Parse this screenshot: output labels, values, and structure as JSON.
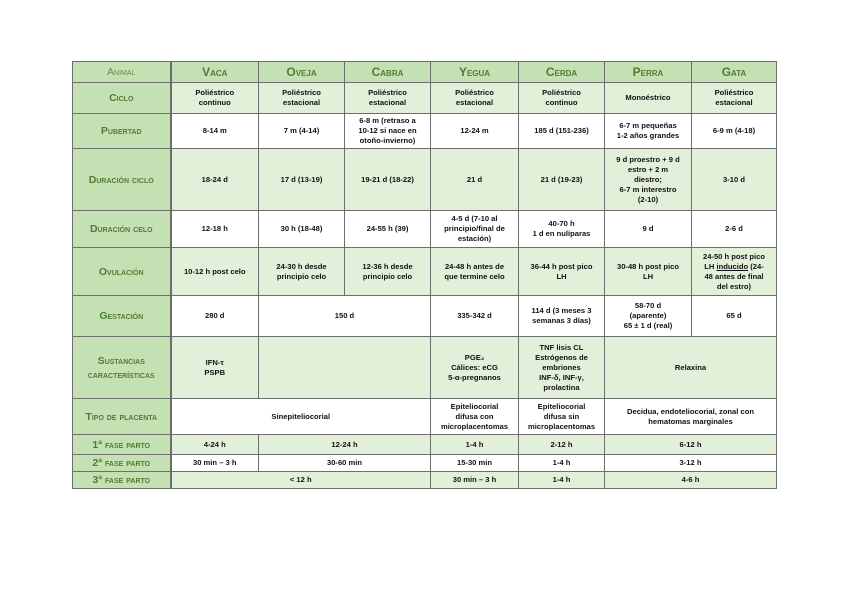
{
  "header": {
    "label": "Animal",
    "animals": [
      "Vaca",
      "Oveja",
      "Cabra",
      "Yegua",
      "Cerda",
      "Perra",
      "Gata"
    ]
  },
  "colors": {
    "header_bg": "#c5e0b3",
    "shaded_row": "#e2efd9",
    "label_text": "#4f7d35"
  },
  "rows": [
    {
      "label": "Ciclo",
      "shade": "g",
      "cells": [
        {
          "text": "Poliéstrico\ncontinuo"
        },
        {
          "text": "Poliéstrico\nestacional"
        },
        {
          "text": "Poliéstrico\nestacional"
        },
        {
          "text": "Poliéstrico\nestacional"
        },
        {
          "text": "Poliéstrico\ncontinuo"
        },
        {
          "text": "Monoéstrico"
        },
        {
          "text": "Poliéstrico\nestacional"
        }
      ]
    },
    {
      "label": "Pubertad",
      "shade": "w",
      "cells": [
        {
          "text": "8-14 m"
        },
        {
          "text": "7 m (4-14)"
        },
        {
          "text": "6-8 m (retraso a\n10-12 si nace en\notoño-invierno)"
        },
        {
          "text": "12-24 m"
        },
        {
          "text": "185 d (151-236)"
        },
        {
          "text": "6-7 m pequeñas\n1-2 años grandes"
        },
        {
          "text": "6-9 m (4-18)"
        }
      ]
    },
    {
      "label": "Duración ciclo",
      "shade": "g",
      "cells": [
        {
          "text": "18-24 d"
        },
        {
          "text": "17 d (13-19)"
        },
        {
          "text": "19-21 d (18-22)"
        },
        {
          "text": "21 d"
        },
        {
          "text": "21 d (19-23)"
        },
        {
          "text": "9 d proestro + 9 d\nestro + 2 m\ndiestro;\n6-7 m interestro\n(2-10)"
        },
        {
          "text": "3-10 d"
        }
      ]
    },
    {
      "label": "Duración celo",
      "shade": "w",
      "cells": [
        {
          "text": "12-18 h"
        },
        {
          "text": "30 h (18-48)"
        },
        {
          "text": "24-55 h (39)"
        },
        {
          "text": "4-5 d (7-10 al\nprincipio/final de\nestación)"
        },
        {
          "text": "40-70 h\n1 d en nulíparas"
        },
        {
          "text": "9 d"
        },
        {
          "text": "2-6 d"
        }
      ]
    },
    {
      "label": "Ovulación",
      "shade": "g",
      "cells": [
        {
          "text": "10-12 h post celo"
        },
        {
          "text": "24-30 h desde\nprincipio celo"
        },
        {
          "text": "12-36 h desde\nprincipio celo"
        },
        {
          "text": "24-48 h antes de\nque termine celo"
        },
        {
          "text": "36-44 h post pico\nLH"
        },
        {
          "text": "30-48 h post pico\nLH"
        },
        {
          "text": "24-50 h post pico\nLH inducido (24-\n48 antes de final\ndel estro)"
        }
      ]
    },
    {
      "label": "Gestación",
      "shade": "w",
      "cells": [
        {
          "text": "280 d"
        },
        {
          "text": "150 d",
          "span": 2
        },
        {
          "text": "335-342 d"
        },
        {
          "text": "114 d (3 meses 3\nsemanas 3 días)"
        },
        {
          "text": "58-70 d\n(aparente)\n65 ± 1 d (real)"
        },
        {
          "text": "65 d"
        }
      ]
    },
    {
      "label": "Sustancias características",
      "shade": "g",
      "cells": [
        {
          "text": "IFN-τ\nPSPB"
        },
        {
          "text": "",
          "span": 2
        },
        {
          "text": "PGE₂\nCálices: eCG\n5-α-pregnanos"
        },
        {
          "text": "TNF lisis CL\nEstrógenos de\nembriones\nINF-δ, INF-γ,\nprolactina"
        },
        {
          "text": "Relaxina",
          "span": 2
        }
      ]
    },
    {
      "label": "Tipo de placenta",
      "shade": "w",
      "cells": [
        {
          "text": "Sinepiteliocorial",
          "span": 3
        },
        {
          "text": "Epiteliocorial\ndifusa con\nmicroplacentomas"
        },
        {
          "text": "Epiteliocorial\ndifusa sin\nmicroplacentomas"
        },
        {
          "text": "Decidua, endoteliocorial, zonal con\nhematomas marginales",
          "span": 2
        }
      ]
    },
    {
      "label": "1ª fase parto",
      "shade": "g",
      "cells": [
        {
          "text": "4-24 h"
        },
        {
          "text": "12-24 h",
          "span": 2
        },
        {
          "text": "1-4 h"
        },
        {
          "text": "2-12 h"
        },
        {
          "text": "6-12 h",
          "span": 2
        }
      ]
    },
    {
      "label": "2ª fase parto",
      "shade": "w",
      "cells": [
        {
          "text": "30 min – 3 h"
        },
        {
          "text": "30-60 min",
          "span": 2
        },
        {
          "text": "15-30 min"
        },
        {
          "text": "1-4 h"
        },
        {
          "text": "3-12 h",
          "span": 2
        }
      ]
    },
    {
      "label": "3ª fase parto",
      "shade": "g",
      "cells": [
        {
          "text": "< 12 h",
          "span": 3
        },
        {
          "text": "30 min – 3 h"
        },
        {
          "text": "1-4 h"
        },
        {
          "text": "4-6 h",
          "span": 2
        }
      ]
    }
  ]
}
